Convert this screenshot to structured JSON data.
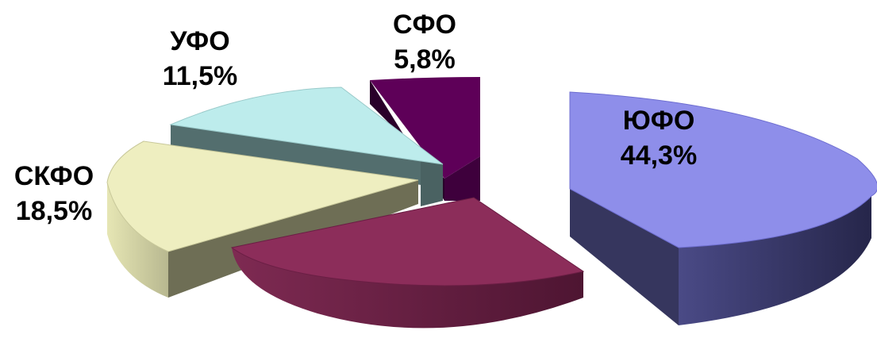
{
  "chart_data": {
    "type": "pie",
    "title": "",
    "legend": "none",
    "slices": [
      {
        "label": "ЮФО",
        "value_label": "44,3%",
        "value": 44.3,
        "color": "#8E8EEA",
        "side_color": "#3D3D66",
        "labelled": true
      },
      {
        "label": "",
        "value_label": "",
        "value": 19.9,
        "color": "#8C2D5A",
        "side_color": "#6A1E44",
        "labelled": false
      },
      {
        "label": "СКФО",
        "value_label": "18,5%",
        "value": 18.5,
        "color": "#EEEEC0",
        "side_color": "#6E6E55",
        "labelled": true
      },
      {
        "label": "УФО",
        "value_label": "11,5%",
        "value": 11.5,
        "color": "#BDECEC",
        "side_color": "#536E6E",
        "labelled": true
      },
      {
        "label": "СФО",
        "value_label": "5,8%",
        "value": 5.8,
        "color": "#5E0058",
        "side_color": "#2E0030",
        "labelled": true
      }
    ]
  }
}
